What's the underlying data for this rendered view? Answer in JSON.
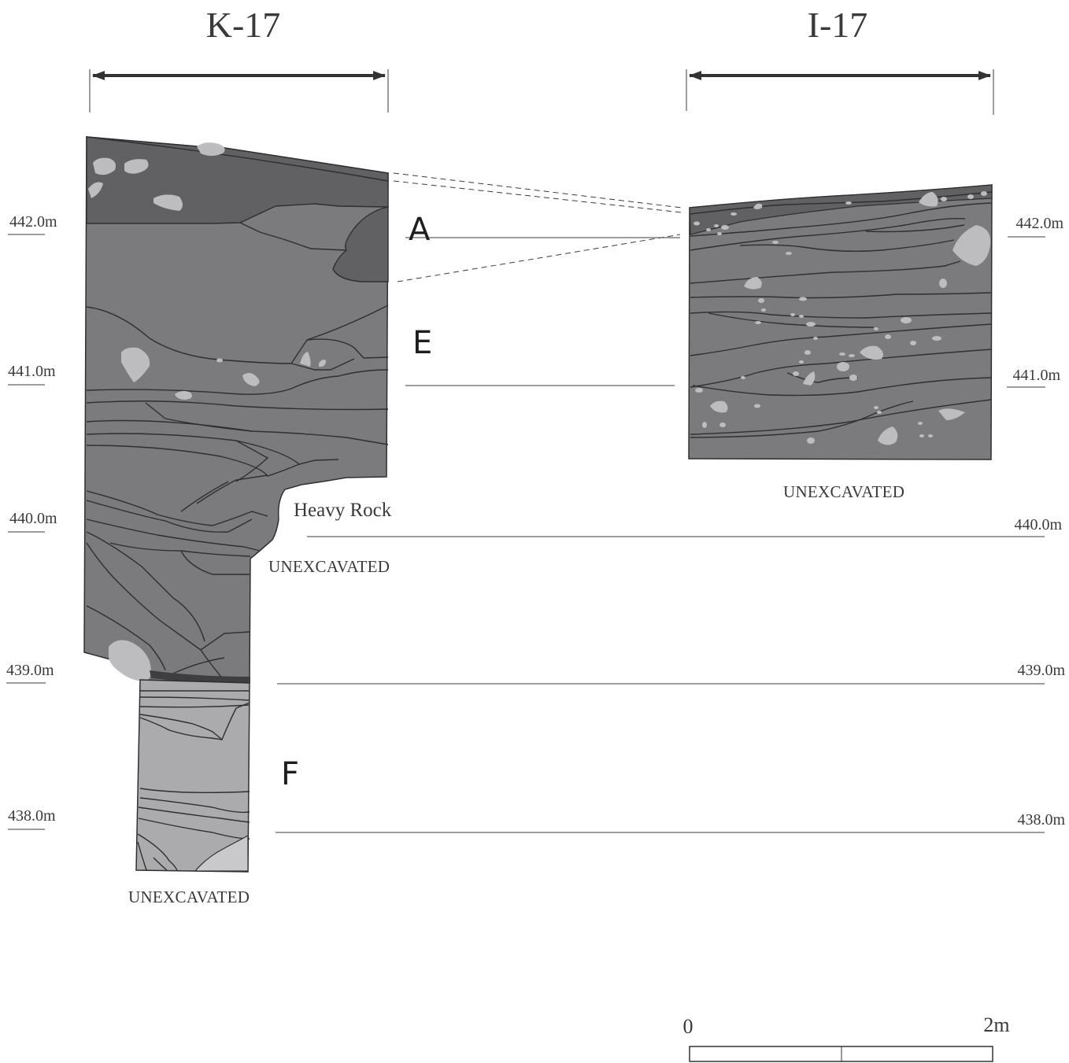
{
  "sections": {
    "k17": {
      "label": "K-17"
    },
    "i17": {
      "label": "I-17"
    }
  },
  "layers": {
    "a": "A",
    "e": "E",
    "f": "F"
  },
  "notes": {
    "heavy_rock": "Heavy Rock",
    "unexcavated_k17_mid": "UNEXCAVATED",
    "unexcavated_k17_bottom": "UNEXCAVATED",
    "unexcavated_i17": "UNEXCAVATED"
  },
  "elevations": {
    "left": [
      "442.0m",
      "441.0m",
      "440.0m",
      "439.0m",
      "438.0m"
    ],
    "right": [
      "442.0m",
      "441.0m",
      "440.0m",
      "439.0m",
      "438.0m"
    ]
  },
  "scale_bar": {
    "start": "0",
    "end": "2m"
  },
  "colors": {
    "dark_layer": "#616164",
    "medium_layer": "#7b7b7e",
    "light_layer": "#ababad",
    "stone": "#bdbdbf",
    "line": "#2f2f31"
  }
}
